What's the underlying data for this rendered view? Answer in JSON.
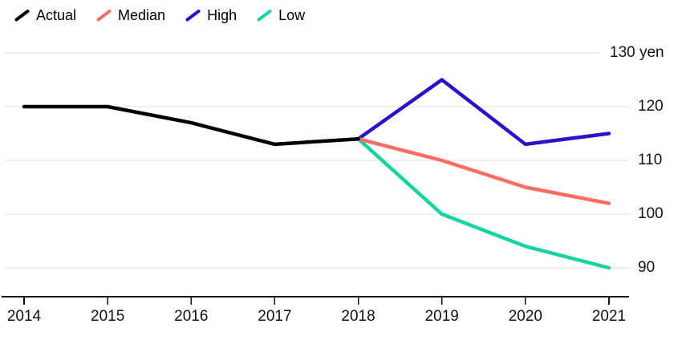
{
  "chart_data": {
    "type": "line",
    "title": "",
    "x_tick_labels": [
      "2014",
      "2015",
      "2016",
      "2017",
      "2018",
      "2019",
      "2020",
      "2021"
    ],
    "xlim": [
      2014,
      2021
    ],
    "y_ticks": [
      {
        "value": 130,
        "label": "130 yen"
      },
      {
        "value": 120,
        "label": "120"
      },
      {
        "value": 110,
        "label": "110"
      },
      {
        "value": 100,
        "label": "100"
      },
      {
        "value": 90,
        "label": "90"
      }
    ],
    "grid": true,
    "legend_position": "top-left",
    "series": [
      {
        "name": "Actual",
        "color": "#000000",
        "points": [
          [
            2014,
            120
          ],
          [
            2015,
            120
          ],
          [
            2016,
            117
          ],
          [
            2017,
            113
          ],
          [
            2018,
            114
          ]
        ]
      },
      {
        "name": "Median",
        "color": "#FA6E64",
        "points": [
          [
            2018,
            114
          ],
          [
            2019,
            110
          ],
          [
            2020,
            105
          ],
          [
            2021,
            102
          ]
        ]
      },
      {
        "name": "High",
        "color": "#2A12C9",
        "points": [
          [
            2018,
            114
          ],
          [
            2019,
            125
          ],
          [
            2020,
            113
          ],
          [
            2021,
            115
          ]
        ]
      },
      {
        "name": "Low",
        "color": "#17D3A2",
        "points": [
          [
            2018,
            114
          ],
          [
            2019,
            100
          ],
          [
            2020,
            94
          ],
          [
            2021,
            90
          ]
        ]
      }
    ],
    "colors": {
      "grid": "#DFDFDF",
      "axis": "#111111",
      "text": "#111111"
    }
  }
}
